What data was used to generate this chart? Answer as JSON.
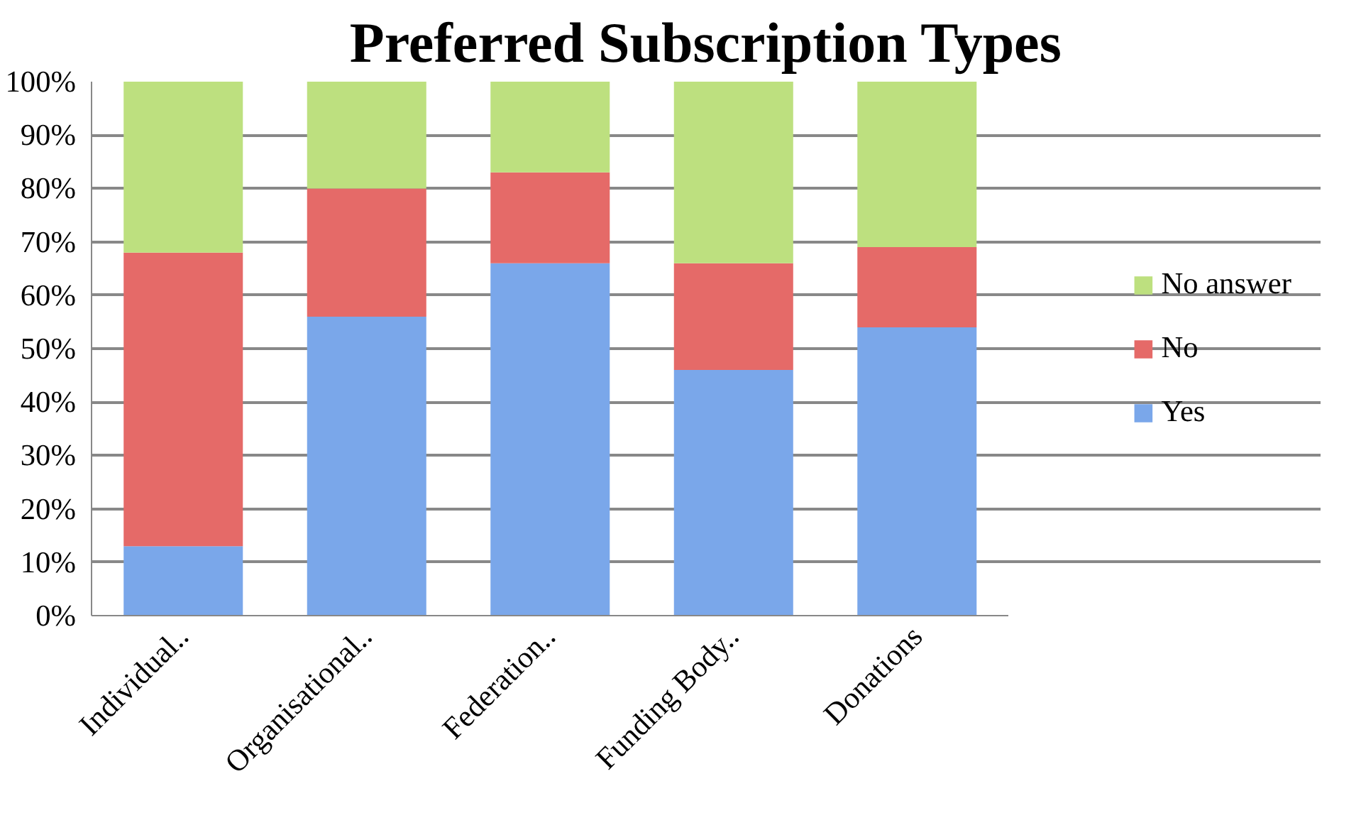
{
  "chart_data": {
    "type": "bar",
    "title": "Preferred Subscription Types",
    "stacked": true,
    "categories": [
      "Individual..",
      "Organisational..",
      "Federation..",
      "Funding Body..",
      "Donations"
    ],
    "series": [
      {
        "name": "Yes",
        "color": "#7aa7ea",
        "values": [
          13,
          56,
          66,
          46,
          54
        ]
      },
      {
        "name": "No",
        "color": "#e56a68",
        "values": [
          55,
          24,
          17,
          20,
          15
        ]
      },
      {
        "name": "No answer",
        "color": "#bde07f",
        "values": [
          32,
          20,
          17,
          34,
          31
        ]
      }
    ],
    "ylim": [
      0,
      100
    ],
    "yticks": [
      {
        "value": 0,
        "label": "0%"
      },
      {
        "value": 10,
        "label": "10%"
      },
      {
        "value": 20,
        "label": "20%"
      },
      {
        "value": 30,
        "label": "30%"
      },
      {
        "value": 40,
        "label": "40%"
      },
      {
        "value": 50,
        "label": "50%"
      },
      {
        "value": 60,
        "label": "60%"
      },
      {
        "value": 70,
        "label": "70%"
      },
      {
        "value": 80,
        "label": "80%"
      },
      {
        "value": 90,
        "label": "90%"
      },
      {
        "value": 100,
        "label": "100%"
      }
    ],
    "grid": "y",
    "legend": "right"
  }
}
